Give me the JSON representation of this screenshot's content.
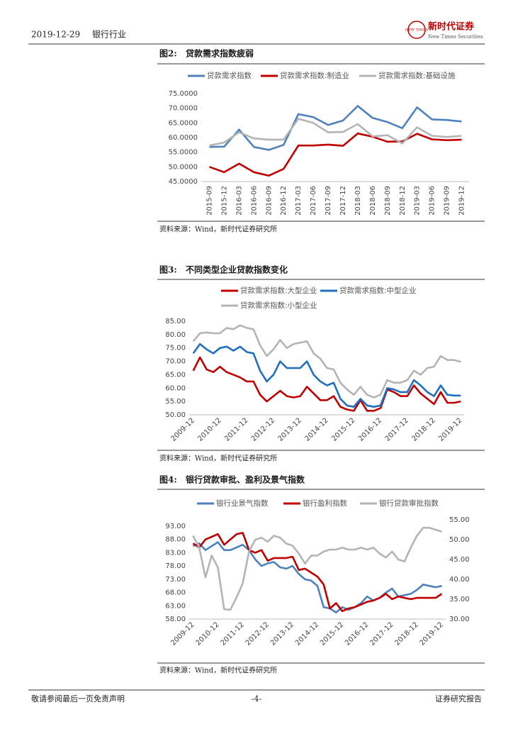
{
  "header": {
    "date": "2019-12-29",
    "sector": "银行行业",
    "logo_badge": "NEW TIMES",
    "logo_cn": "新时代证券",
    "logo_en": "New Times Securities"
  },
  "figures": [
    {
      "label": "图2:",
      "title": "贷款需求指数疲弱",
      "source": "资料来源：Wind，新时代证券研究所"
    },
    {
      "label": "图3:",
      "title": "不同类型企业贷款指数变化",
      "source": "资料来源：Wind，新时代证券研究所"
    },
    {
      "label": "图4:",
      "title": "银行贷款审批、盈利及景气指数",
      "source": "资料来源：Wind，新时代证券研究所"
    }
  ],
  "chart_data": [
    {
      "type": "line",
      "categories": [
        "2015-09",
        "2015-12",
        "2016-03",
        "2016-06",
        "2016-09",
        "2016-12",
        "2017-03",
        "2017-06",
        "2017-09",
        "2017-12",
        "2018-03",
        "2018-06",
        "2018-09",
        "2018-12",
        "2019-03",
        "2019-06",
        "2019-09",
        "2019-12"
      ],
      "series": [
        {
          "name": "贷款需求指数",
          "color": "#4f81bd",
          "values": [
            56.8,
            56.9,
            62.7,
            56.8,
            55.8,
            57.5,
            68.0,
            67.0,
            64.3,
            65.8,
            70.8,
            66.7,
            65.3,
            63.2,
            70.3,
            66.2,
            66.0,
            65.5
          ]
        },
        {
          "name": "贷款需求指数:制造业",
          "color": "#c00000",
          "values": [
            50.0,
            48.2,
            51.1,
            48.2,
            47.0,
            49.3,
            57.3,
            57.3,
            57.6,
            57.2,
            61.4,
            60.3,
            58.6,
            58.7,
            61.3,
            59.4,
            59.1,
            59.3
          ]
        },
        {
          "name": "贷款需求指数:基础设施",
          "color": "#b4b4b4",
          "values": [
            57.3,
            58.3,
            61.8,
            59.7,
            59.3,
            59.3,
            66.4,
            65.0,
            61.8,
            61.9,
            64.6,
            60.4,
            60.8,
            58.0,
            63.5,
            60.6,
            60.2,
            60.6
          ]
        }
      ],
      "ylim": [
        45,
        75
      ],
      "yticks": [
        {
          "value": 45,
          "label": "45.0000"
        },
        {
          "value": 50,
          "label": "50.0000"
        },
        {
          "value": 55,
          "label": "55.0000"
        },
        {
          "value": 60,
          "label": "60.0000"
        },
        {
          "value": 65,
          "label": "65.0000"
        },
        {
          "value": 70,
          "label": "70.0000"
        },
        {
          "value": 75,
          "label": "75.0000"
        }
      ]
    },
    {
      "type": "line",
      "categories": [
        "2009-12",
        null,
        null,
        null,
        "2010-12",
        null,
        null,
        null,
        "2011-12",
        null,
        null,
        null,
        "2012-12",
        null,
        null,
        null,
        "2013-12",
        null,
        null,
        null,
        "2014-12",
        null,
        null,
        null,
        "2015-12",
        null,
        null,
        null,
        "2016-12",
        null,
        null,
        null,
        "2017-12",
        null,
        null,
        null,
        "2018-12",
        null,
        null,
        null,
        "2019-12"
      ],
      "series": [
        {
          "name": "贷款需求指数:大型企业",
          "color": "#c00000",
          "values": [
            66.5,
            71.5,
            67,
            66,
            68,
            66,
            65,
            64,
            62.5,
            62.5,
            57.5,
            55,
            57,
            59,
            57,
            56.5,
            57,
            60.5,
            58,
            55.5,
            55.5,
            57,
            53,
            52,
            51.5,
            55.5,
            51.5,
            51.5,
            52.5,
            59.5,
            58.5,
            57,
            57,
            61,
            58,
            56,
            54,
            58.5,
            54.5,
            54.5,
            55
          ]
        },
        {
          "name": "贷款需求指数:中型企业",
          "color": "#1f6fbf",
          "values": [
            73,
            76.5,
            74.5,
            73,
            75,
            75.5,
            74,
            75.5,
            73.5,
            73,
            66.5,
            62.5,
            65,
            70,
            67.5,
            67.5,
            67.5,
            70,
            65,
            62.5,
            61,
            62,
            56,
            53.5,
            53,
            56,
            53.5,
            53,
            53.5,
            60,
            59.5,
            58.5,
            58.5,
            63,
            61,
            58.5,
            57,
            61,
            57.5,
            57.2,
            57.2
          ]
        },
        {
          "name": "贷款需求指数:小型企业",
          "color": "#b4b4b4",
          "values": [
            77.5,
            80.5,
            80.8,
            80.5,
            80.5,
            82.5,
            82,
            83.5,
            82.5,
            82,
            76,
            72,
            74.5,
            78,
            75,
            76.5,
            77,
            77.5,
            73,
            71,
            67.5,
            67,
            62,
            59.5,
            57.5,
            60.5,
            57.5,
            56.5,
            57.5,
            63,
            62,
            62,
            63,
            66.5,
            65,
            67.5,
            68,
            72,
            70.5,
            70.5,
            69.8
          ]
        }
      ],
      "ylim": [
        50,
        85
      ],
      "yticks": [
        {
          "value": 50,
          "label": "50.00"
        },
        {
          "value": 55,
          "label": "55.00"
        },
        {
          "value": 60,
          "label": "60.00"
        },
        {
          "value": 65,
          "label": "65.00"
        },
        {
          "value": 70,
          "label": "70.00"
        },
        {
          "value": 75,
          "label": "75.00"
        },
        {
          "value": 80,
          "label": "80.00"
        },
        {
          "value": 85,
          "label": "85.00"
        }
      ]
    },
    {
      "type": "line",
      "categories": [
        "2009-12",
        null,
        null,
        null,
        "2010-12",
        null,
        null,
        null,
        "2011-12",
        null,
        null,
        null,
        "2012-12",
        null,
        null,
        null,
        "2013-12",
        null,
        null,
        null,
        "2014-12",
        null,
        null,
        null,
        "2015-12",
        null,
        null,
        null,
        "2016-12",
        null,
        null,
        null,
        "2017-12",
        null,
        null,
        null,
        "2018-12",
        null,
        null,
        null,
        "2019-12"
      ],
      "series": [
        {
          "name": "银行业景气指数",
          "color": "#4f81bd",
          "values": [
            85.5,
            86.5,
            84,
            85.5,
            87,
            84,
            84,
            85,
            86,
            84,
            80.5,
            78,
            79,
            79.5,
            77.5,
            77,
            78,
            75,
            73,
            72.5,
            70.5,
            62.5,
            62,
            60.5,
            62.5,
            61.5,
            62.5,
            64,
            66.5,
            65,
            66,
            68,
            69.5,
            66.5,
            67,
            67.5,
            69,
            71,
            70.5,
            70,
            70.5
          ]
        },
        {
          "name": "银行盈利指数",
          "color": "#c00000",
          "values": [
            86.5,
            85,
            88,
            89,
            90,
            86,
            88,
            90,
            90.5,
            84,
            83,
            84,
            80,
            81,
            81,
            81,
            81.5,
            76.5,
            77,
            75.5,
            74,
            71,
            62,
            64,
            61,
            62,
            62.5,
            63.5,
            64.5,
            65,
            66,
            67.5,
            65.5,
            66.5,
            66,
            65.5,
            66,
            66,
            66,
            66,
            67.5
          ]
        },
        {
          "name": "银行贷款审批指数",
          "color": "#b4b4b4",
          "axis": "y2",
          "values": [
            51,
            48,
            40.5,
            46,
            43,
            32.5,
            32.3,
            35.5,
            39,
            47,
            50,
            50.5,
            49.5,
            51,
            50.5,
            49,
            48.5,
            46.5,
            44,
            46,
            46,
            47,
            47.5,
            47.5,
            48,
            47.5,
            47.5,
            48,
            47.5,
            48,
            46.5,
            45.5,
            47,
            45,
            44.5,
            48,
            51,
            53,
            53,
            52.5,
            52
          ]
        }
      ],
      "ylim": [
        58,
        93
      ],
      "yticks": [
        {
          "value": 58,
          "label": "58.00"
        },
        {
          "value": 63,
          "label": "63.00"
        },
        {
          "value": 68,
          "label": "68.00"
        },
        {
          "value": 73,
          "label": "73.00"
        },
        {
          "value": 78,
          "label": "78.00"
        },
        {
          "value": 83,
          "label": "83.00"
        },
        {
          "value": 88,
          "label": "88.00"
        },
        {
          "value": 93,
          "label": "93.00"
        }
      ],
      "y2lim": [
        30,
        55
      ],
      "y2ticks": [
        {
          "value": 30,
          "label": "30.00"
        },
        {
          "value": 35,
          "label": "35.00"
        },
        {
          "value": 40,
          "label": "40.00"
        },
        {
          "value": 45,
          "label": "45.00"
        },
        {
          "value": 50,
          "label": "50.00"
        },
        {
          "value": 55,
          "label": "55.00"
        }
      ]
    }
  ],
  "footer": {
    "disclaimer": "敬请参阅最后一页免责声明",
    "page": "-4-",
    "report_type": "证券研究报告"
  }
}
